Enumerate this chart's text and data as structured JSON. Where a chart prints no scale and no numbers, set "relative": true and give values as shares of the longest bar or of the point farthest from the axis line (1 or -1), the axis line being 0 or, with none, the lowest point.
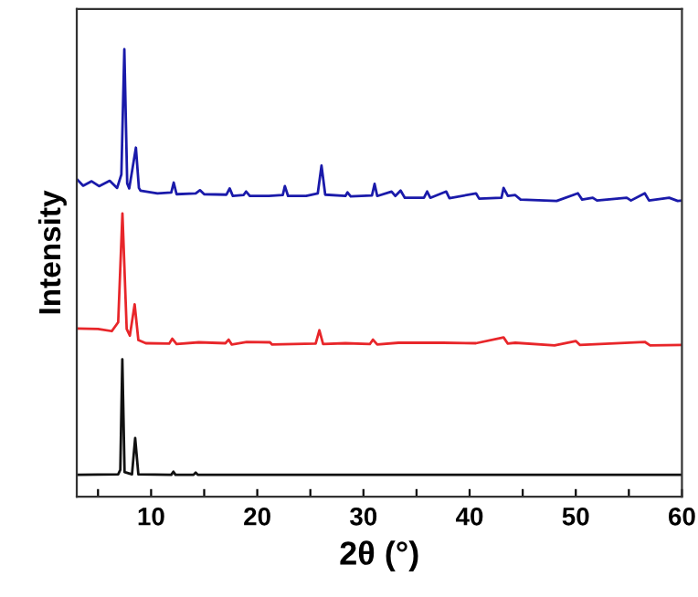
{
  "chart_data": {
    "type": "line",
    "xlabel": "2θ (°)",
    "ylabel": "Intensity",
    "relative": true,
    "xlim": [
      3,
      60
    ],
    "xticks": [
      {
        "value": 5,
        "label": null
      },
      10,
      {
        "value": 15,
        "label": null
      },
      20,
      {
        "value": 25,
        "label": null
      },
      30,
      {
        "value": 35,
        "label": null
      },
      40,
      {
        "value": 45,
        "label": null
      },
      50,
      {
        "value": 55,
        "label": null
      },
      60
    ],
    "tick_labels": "x",
    "grid": false,
    "marker": "none",
    "line_style": "solid",
    "series": [
      {
        "color": "#1a1aaa",
        "x": [
          3.0,
          3.6,
          4.4,
          5.1,
          6.1,
          6.8,
          7.2,
          7.48,
          7.75,
          7.94,
          8.57,
          8.85,
          9.0,
          10.6,
          11.9,
          12.13,
          12.4,
          14.2,
          14.6,
          15.0,
          17.1,
          17.4,
          17.7,
          18.7,
          18.95,
          19.3,
          21.1,
          22.4,
          22.6,
          22.9,
          24.6,
          25.7,
          26.05,
          26.4,
          28.3,
          28.5,
          28.8,
          30.8,
          31.05,
          31.3,
          32.65,
          33.0,
          33.5,
          33.9,
          35.7,
          36.0,
          36.3,
          37.8,
          38.1,
          40.6,
          40.9,
          43.0,
          43.2,
          43.6,
          44.3,
          44.8,
          48.2,
          50.2,
          50.6,
          51.6,
          52.0,
          54.8,
          55.2,
          56.5,
          56.9,
          58.8,
          59.6,
          60
        ],
        "values": [
          0.71,
          0.695,
          0.705,
          0.694,
          0.706,
          0.69,
          0.72,
          1.0,
          0.7,
          0.689,
          0.78,
          0.69,
          0.684,
          0.678,
          0.68,
          0.702,
          0.676,
          0.678,
          0.685,
          0.676,
          0.675,
          0.689,
          0.672,
          0.674,
          0.682,
          0.672,
          0.672,
          0.674,
          0.694,
          0.672,
          0.672,
          0.678,
          0.74,
          0.675,
          0.672,
          0.68,
          0.671,
          0.673,
          0.699,
          0.672,
          0.682,
          0.672,
          0.684,
          0.668,
          0.668,
          0.682,
          0.668,
          0.682,
          0.667,
          0.678,
          0.666,
          0.668,
          0.69,
          0.672,
          0.674,
          0.664,
          0.661,
          0.678,
          0.664,
          0.668,
          0.662,
          0.668,
          0.662,
          0.678,
          0.662,
          0.668,
          0.661,
          0.662
        ]
      },
      {
        "color": "#e8262a",
        "x": [
          3.0,
          5.0,
          6.3,
          6.9,
          7.3,
          7.7,
          8.0,
          8.45,
          8.8,
          9.5,
          11.7,
          12.0,
          12.4,
          14.5,
          17.0,
          17.3,
          17.6,
          19.0,
          21.2,
          21.4,
          25.5,
          25.85,
          26.2,
          28.3,
          30.6,
          30.9,
          31.3,
          33.3,
          35.8,
          37.5,
          40.6,
          43.2,
          43.6,
          44.3,
          48,
          50.0,
          50.4,
          56.5,
          57,
          60
        ],
        "values": [
          0.376,
          0.375,
          0.37,
          0.39,
          0.633,
          0.375,
          0.36,
          0.43,
          0.35,
          0.343,
          0.342,
          0.353,
          0.341,
          0.345,
          0.343,
          0.351,
          0.34,
          0.346,
          0.345,
          0.34,
          0.342,
          0.372,
          0.341,
          0.343,
          0.341,
          0.351,
          0.34,
          0.344,
          0.344,
          0.344,
          0.343,
          0.356,
          0.342,
          0.344,
          0.338,
          0.348,
          0.339,
          0.346,
          0.338,
          0.339
        ]
      },
      {
        "color": "#111111",
        "x": [
          3.0,
          6.9,
          7.1,
          7.29,
          7.5,
          8.2,
          8.5,
          8.8,
          11.9,
          12.1,
          12.3,
          14.0,
          14.2,
          14.4,
          60
        ],
        "values": [
          0.049,
          0.05,
          0.06,
          0.307,
          0.055,
          0.05,
          0.131,
          0.05,
          0.049,
          0.056,
          0.049,
          0.049,
          0.054,
          0.049,
          0.049
        ]
      }
    ]
  }
}
